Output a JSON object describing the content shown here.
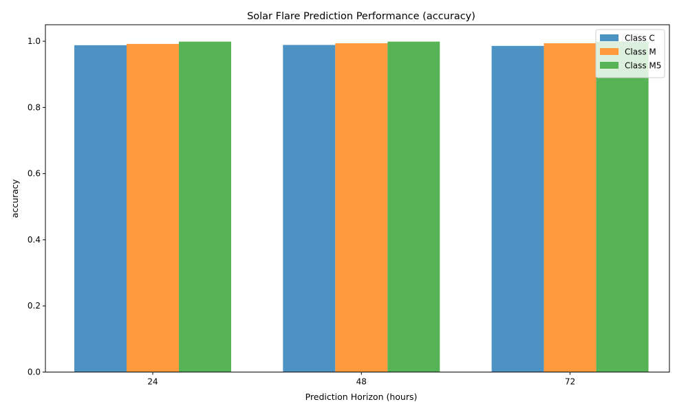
{
  "chart_data": {
    "type": "bar",
    "title": "Solar Flare Prediction Performance (accuracy)",
    "xlabel": "Prediction Horizon (hours)",
    "ylabel": "accuracy",
    "categories": [
      "24",
      "48",
      "72"
    ],
    "ylim": [
      0,
      1.05
    ],
    "yticks": [
      "0.0",
      "0.2",
      "0.4",
      "0.6",
      "0.8",
      "1.0"
    ],
    "grid": false,
    "legend_position": "top-right",
    "series": [
      {
        "name": "Class C",
        "values": [
          0.988,
          0.989,
          0.986
        ],
        "color": "#4c92c3"
      },
      {
        "name": "Class M",
        "values": [
          0.992,
          0.994,
          0.994
        ],
        "color": "#ff993e"
      },
      {
        "name": "Class M5",
        "values": [
          0.999,
          0.999,
          0.999
        ],
        "color": "#56b356"
      }
    ]
  }
}
